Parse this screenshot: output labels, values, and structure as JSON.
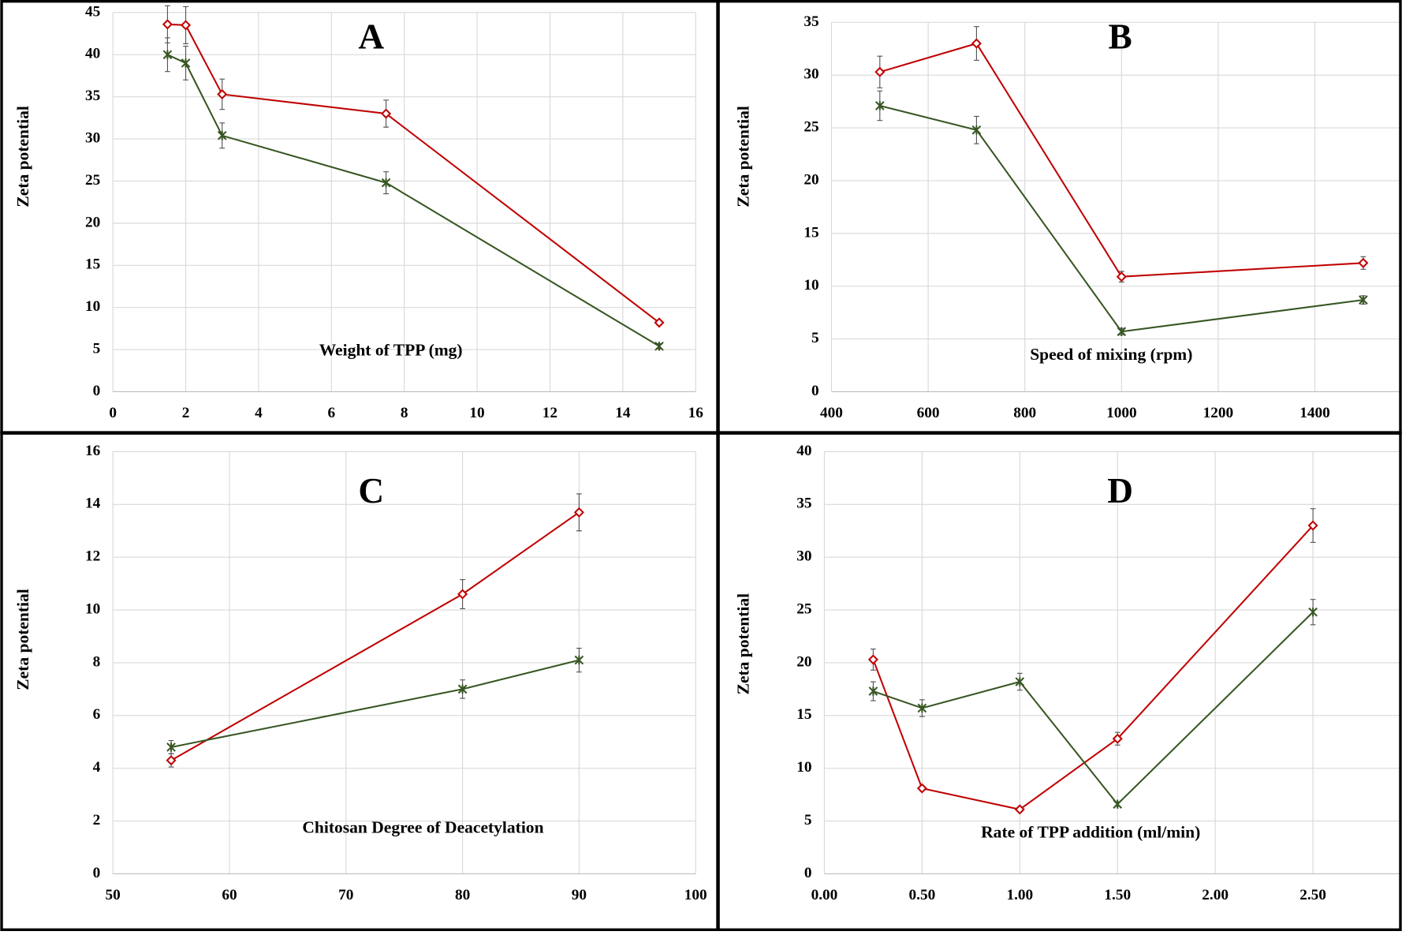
{
  "chart_data": [
    {
      "type": "line",
      "title": "A",
      "x_label": "Weight of TPP (mg)",
      "y_label": "Zeta potential",
      "x": [
        1.5,
        2,
        3,
        7.5,
        15
      ],
      "series": [
        {
          "color": "#c00000",
          "marker": "diamond",
          "values": [
            43.6,
            43.5,
            35.3,
            33,
            8.2
          ],
          "errors": [
            2.2,
            2.2,
            1.8,
            1.6,
            0.3
          ]
        },
        {
          "color": "#375623",
          "marker": "star",
          "values": [
            40,
            39,
            30.4,
            24.8,
            5.4
          ],
          "errors": [
            2,
            2,
            1.5,
            1.3,
            0.3
          ]
        }
      ],
      "xlim": [
        0,
        16
      ],
      "xticks": [
        0,
        2,
        4,
        6,
        8,
        10,
        12,
        14,
        16
      ],
      "ylim": [
        0,
        45
      ],
      "yticks": [
        0,
        5,
        10,
        15,
        20,
        25,
        30,
        35,
        40,
        45
      ],
      "grid": true
    },
    {
      "type": "line",
      "title": "B",
      "x_label": "Speed of mixing (rpm)",
      "y_label": "Zeta potential",
      "x": [
        500,
        700,
        1000,
        1500
      ],
      "series": [
        {
          "color": "#c00000",
          "marker": "diamond",
          "values": [
            30.3,
            33,
            10.9,
            12.2
          ],
          "errors": [
            1.5,
            1.6,
            0.5,
            0.6
          ]
        },
        {
          "color": "#375623",
          "marker": "star",
          "values": [
            27.1,
            24.8,
            5.7,
            8.7
          ],
          "errors": [
            1.4,
            1.3,
            0.3,
            0.4
          ]
        }
      ],
      "xlim": [
        400,
        1600
      ],
      "xticks": [
        400,
        600,
        800,
        1000,
        1200,
        1400
      ],
      "ylim": [
        0,
        35
      ],
      "yticks": [
        0,
        5,
        10,
        15,
        20,
        25,
        30,
        35
      ],
      "grid": true
    },
    {
      "type": "line",
      "title": "C",
      "x_label": "Chitosan Degree of Deacetylation",
      "y_label": "Zeta potential",
      "x": [
        55,
        80,
        90
      ],
      "series": [
        {
          "color": "#c00000",
          "marker": "diamond",
          "values": [
            4.3,
            10.6,
            13.7
          ],
          "errors": [
            0.25,
            0.55,
            0.7
          ]
        },
        {
          "color": "#375623",
          "marker": "star",
          "values": [
            4.8,
            7,
            8.1
          ],
          "errors": [
            0.25,
            0.35,
            0.45
          ]
        }
      ],
      "xlim": [
        50,
        100
      ],
      "xticks": [
        50,
        60,
        70,
        80,
        90,
        100
      ],
      "ylim": [
        0,
        16
      ],
      "yticks": [
        0,
        2,
        4,
        6,
        8,
        10,
        12,
        14,
        16
      ],
      "grid": true
    },
    {
      "type": "line",
      "title": "D",
      "x_label": "Rate of TPP addition (ml/min)",
      "y_label": "Zeta potential",
      "x": [
        0.25,
        0.5,
        1,
        1.5,
        2.5
      ],
      "series": [
        {
          "color": "#c00000",
          "marker": "diamond",
          "values": [
            20.3,
            8.1,
            6.1,
            12.8,
            33
          ],
          "errors": [
            1,
            0.2,
            0.2,
            0.6,
            1.6
          ]
        },
        {
          "color": "#375623",
          "marker": "star",
          "values": [
            17.3,
            15.7,
            18.2,
            6.6,
            24.8
          ],
          "errors": [
            0.9,
            0.8,
            0.8,
            0.2,
            1.2
          ]
        }
      ],
      "xlim": [
        0,
        3
      ],
      "xticks": [
        {
          "value": 0,
          "label": "0.00"
        },
        {
          "value": 0.5,
          "label": "0.50"
        },
        {
          "value": 1,
          "label": "1.00"
        },
        {
          "value": 1.5,
          "label": "1.50"
        },
        {
          "value": 2,
          "label": "2.00"
        },
        {
          "value": 2.5,
          "label": "2.50"
        }
      ],
      "ylim": [
        0,
        40
      ],
      "yticks": [
        0,
        5,
        10,
        15,
        20,
        25,
        30,
        35,
        40
      ],
      "grid": true
    }
  ]
}
